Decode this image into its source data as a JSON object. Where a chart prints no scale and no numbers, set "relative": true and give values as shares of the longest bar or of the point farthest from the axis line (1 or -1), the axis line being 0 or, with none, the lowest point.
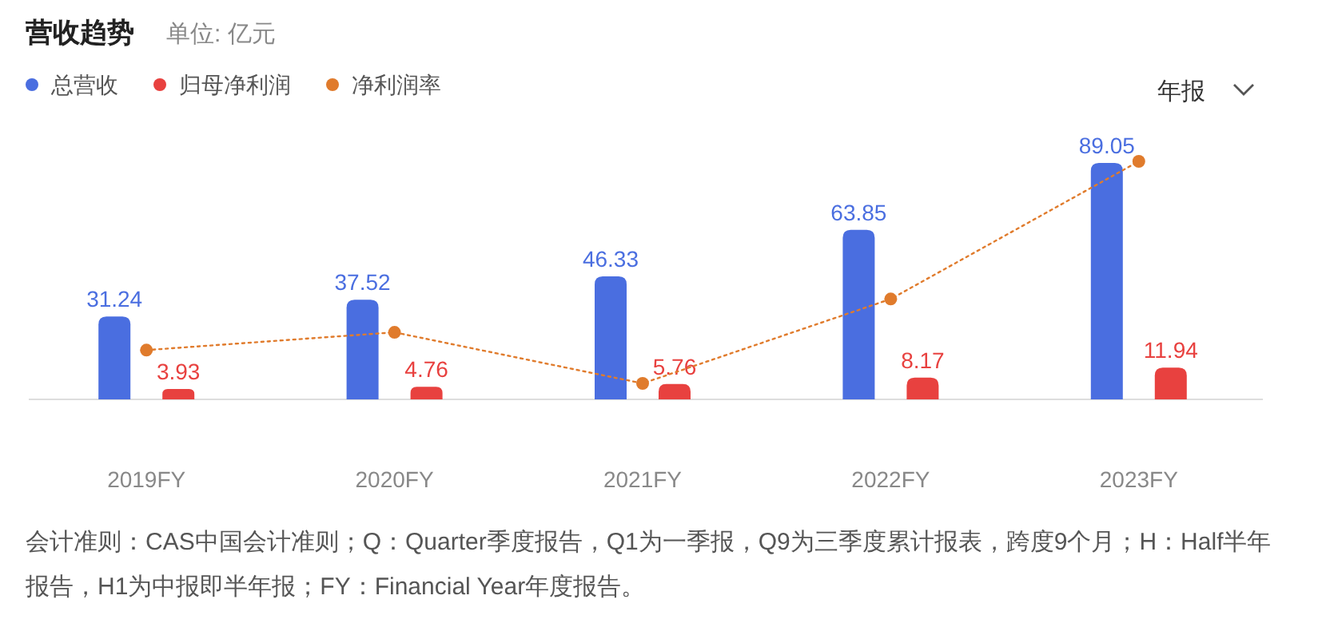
{
  "chart_data": [
    {
      "type": "bar",
      "title": "营收趋势",
      "subtitle": "单位: 亿元",
      "categories": [
        "2019FY",
        "2020FY",
        "2021FY",
        "2022FY",
        "2023FY"
      ],
      "series": [
        {
          "name": "总营收",
          "color": "#4a6ee0",
          "values": [
            31.24,
            37.52,
            46.33,
            63.85,
            89.05
          ],
          "value_labels": [
            "31.24",
            "37.52",
            "46.33",
            "63.85",
            "89.05"
          ]
        },
        {
          "name": "归母净利润",
          "color": "#e8413f",
          "values": [
            3.93,
            4.76,
            5.76,
            8.17,
            11.94
          ],
          "value_labels": [
            "3.93",
            "4.76",
            "5.76",
            "8.17",
            "11.94"
          ]
        }
      ],
      "legend": "top left",
      "tick_labels": "x",
      "annotations": [
        "年报",
        "会计准则：CAS中国会计准则；Q：Quarter季度报告，Q1为一季报，Q9为三季度累计报表，跨度9个月；H：Half半年报告，H1为中报即半年报；FY：Financial Year年度报告。"
      ]
    },
    {
      "type": "line",
      "relative": true,
      "categories": [
        null,
        null,
        null,
        null,
        null
      ],
      "tick_labels": false,
      "legend": "top left",
      "series": [
        {
          "name": "净利润率",
          "color": "#e07b2c",
          "values": [
            0.15,
            0.23,
            0,
            0.38,
            1
          ],
          "line_style": "dotted",
          "marker": "circle"
        }
      ]
    }
  ]
}
